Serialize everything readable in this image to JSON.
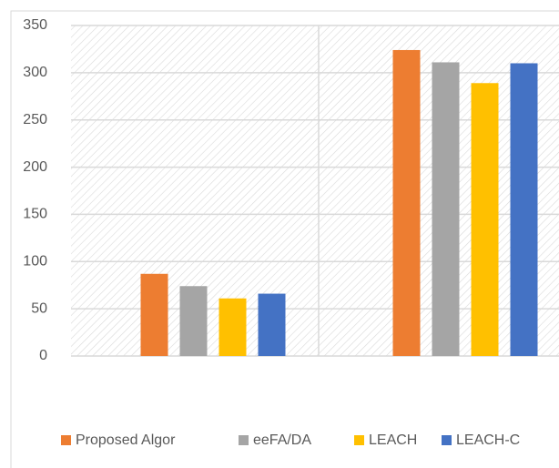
{
  "chart_data": {
    "type": "bar",
    "categories": [
      null,
      null
    ],
    "series": [
      {
        "name": "Proposed Algor",
        "color": "#ed7d31",
        "values": [
          87,
          324
        ]
      },
      {
        "name": "eeFA/DA",
        "color": "#a5a5a5",
        "values": [
          74,
          311
        ]
      },
      {
        "name": "LEACH",
        "color": "#ffc000",
        "values": [
          61,
          289
        ]
      },
      {
        "name": "LEACH-C",
        "color": "#4472c4",
        "values": [
          66,
          310
        ]
      }
    ],
    "ylim": [
      0,
      350
    ],
    "yticks": [
      0,
      50,
      100,
      150,
      200,
      250,
      300,
      350
    ],
    "grid": true,
    "legend": "bottom"
  }
}
